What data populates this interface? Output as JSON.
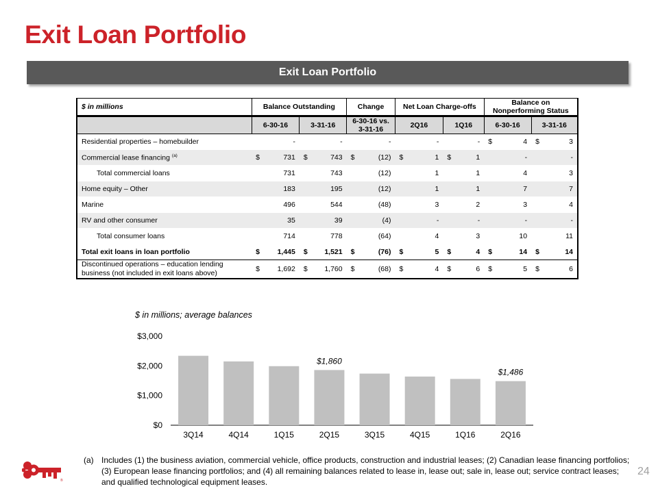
{
  "page": {
    "title": "Exit Loan Portfolio",
    "banner": "Exit Loan Portfolio",
    "page_number": "24"
  },
  "table": {
    "units_label": "$ in millions",
    "groups": {
      "balance": "Balance Outstanding",
      "change": "Change",
      "charge_offs": "Net Loan Charge-offs",
      "nonperforming_1": "Balance on",
      "nonperforming_2": "Nonperforming Status"
    },
    "subheaders": [
      "6-30-16",
      "3-31-16",
      "6-30-16 vs.",
      "3-31-16",
      "2Q16",
      "1Q16",
      "6-30-16",
      "3-31-16"
    ],
    "rows": [
      {
        "label": "Residential properties – homebuilder",
        "sup": "",
        "b1": "-",
        "b2": "-",
        "ch": "-",
        "co1": "-",
        "co2": "-",
        "np1": "4",
        "np2": "3",
        "d": {
          "b1": "",
          "b2": "",
          "ch": "",
          "co1": "",
          "co2": "",
          "np1": "$",
          "np2": "$"
        }
      },
      {
        "label": "Commercial lease financing",
        "sup": "(a)",
        "b1": "731",
        "b2": "743",
        "ch": "(12)",
        "co1": "1",
        "co2": "1",
        "np1": "-",
        "np2": "-",
        "d": {
          "b1": "$",
          "b2": "$",
          "ch": "$",
          "co1": "$",
          "co2": "$",
          "np1": "",
          "np2": ""
        }
      },
      {
        "label": "Total commercial loans",
        "sup": "",
        "b1": "731",
        "b2": "743",
        "ch": "(12)",
        "co1": "1",
        "co2": "1",
        "np1": "4",
        "np2": "3",
        "d": {
          "b1": "",
          "b2": "",
          "ch": "",
          "co1": "",
          "co2": "",
          "np1": "",
          "np2": ""
        }
      },
      {
        "label": "Home equity – Other",
        "sup": "",
        "b1": "183",
        "b2": "195",
        "ch": "(12)",
        "co1": "1",
        "co2": "1",
        "np1": "7",
        "np2": "7",
        "d": {
          "b1": "",
          "b2": "",
          "ch": "",
          "co1": "",
          "co2": "",
          "np1": "",
          "np2": ""
        }
      },
      {
        "label": "Marine",
        "sup": "",
        "b1": "496",
        "b2": "544",
        "ch": "(48)",
        "co1": "3",
        "co2": "2",
        "np1": "3",
        "np2": "4",
        "d": {
          "b1": "",
          "b2": "",
          "ch": "",
          "co1": "",
          "co2": "",
          "np1": "",
          "np2": ""
        }
      },
      {
        "label": "RV and other consumer",
        "sup": "",
        "b1": "35",
        "b2": "39",
        "ch": "(4)",
        "co1": "-",
        "co2": "-",
        "np1": "-",
        "np2": "-",
        "d": {
          "b1": "",
          "b2": "",
          "ch": "",
          "co1": "",
          "co2": "",
          "np1": "",
          "np2": ""
        }
      },
      {
        "label": "Total consumer loans",
        "sup": "",
        "b1": "714",
        "b2": "778",
        "ch": "(64)",
        "co1": "4",
        "co2": "3",
        "np1": "10",
        "np2": "11",
        "d": {
          "b1": "",
          "b2": "",
          "ch": "",
          "co1": "",
          "co2": "",
          "np1": "",
          "np2": ""
        }
      }
    ],
    "total": {
      "label": "Total exit loans in loan portfolio",
      "b1": "1,445",
      "b2": "1,521",
      "ch": "(76)",
      "co1": "5",
      "co2": "4",
      "np1": "14",
      "np2": "14",
      "dollar": "$"
    },
    "discontinued": {
      "label_1": "Discontinued operations – education lending",
      "label_2": "business (not included in exit loans above)",
      "b1": "1,692",
      "b2": "1,760",
      "ch": "(68)",
      "co1": "4",
      "co2": "6",
      "np1": "5",
      "np2": "6",
      "dollar": "$"
    }
  },
  "chart_subtitle": "$ in millions; average balances",
  "chart_data": {
    "type": "bar",
    "title": "",
    "xlabel": "",
    "ylabel": "",
    "categories": [
      "3Q14",
      "4Q14",
      "1Q15",
      "2Q15",
      "3Q15",
      "4Q15",
      "1Q16",
      "2Q16"
    ],
    "values": [
      2340,
      2150,
      1990,
      1860,
      1740,
      1640,
      1560,
      1486
    ],
    "data_labels": {
      "3": "$1,860",
      "7": "$1,486"
    },
    "ylim": [
      0,
      3000
    ],
    "yticks": [
      "$0",
      "$1,000",
      "$2,000",
      "$3,000"
    ],
    "ytick_values": [
      0,
      1000,
      2000,
      3000
    ],
    "bar_color": "#c0c0c0"
  },
  "footnote": {
    "marker": "(a)",
    "text": "Includes (1) the business aviation, commercial vehicle, office products, construction and industrial leases; (2) Canadian lease financing portfolios; (3) European lease financing portfolios; and (4) all remaining balances related to lease in, lease out; sale in, lease out; service contract leases; and qualified technological equipment leases."
  },
  "colors": {
    "title": "#cc2229",
    "banner": "#595959",
    "logo": "#cc2229"
  }
}
